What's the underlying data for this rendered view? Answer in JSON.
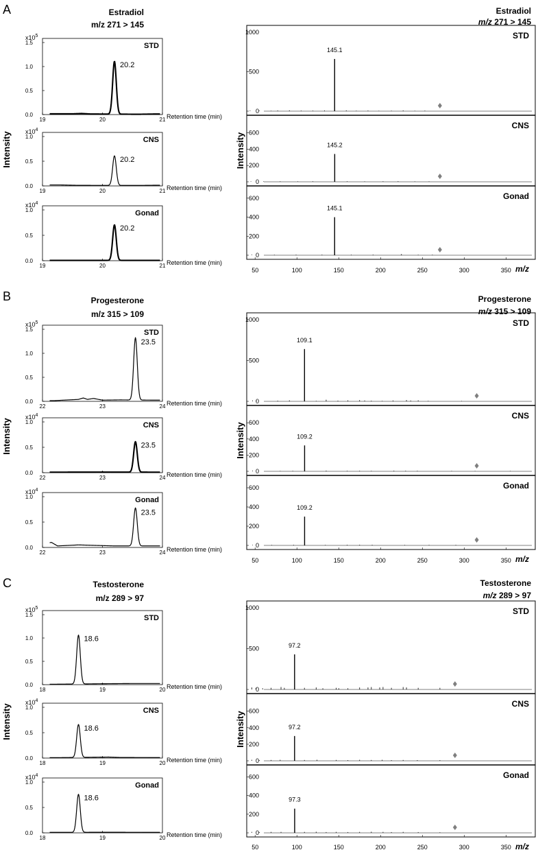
{
  "chart_data": [
    {
      "type": "chromatogram-panel",
      "panel_label": "A",
      "compound": "Estradiol",
      "transition": "m/z 271 > 145",
      "ylabel": "Intensity",
      "xlabel": "Retention time (min)",
      "xticks": [
        "19",
        "20",
        "21"
      ],
      "xrange": [
        19,
        21
      ],
      "peak_rt": 20.2,
      "peak_width": 0.03,
      "traces": [
        {
          "name": "STD",
          "exponent": "x10",
          "exp_sup": "5",
          "yticks": [
            "1.5",
            "1.0",
            "0.5",
            "0.0"
          ],
          "ymax": 1.5,
          "peak_height": 1.1,
          "peak_label": "20.2",
          "thick": true,
          "baseline": [
            [
              19.5,
              0.015
            ],
            [
              19.65,
              0.022
            ],
            [
              19.8,
              0.012
            ],
            [
              20.6,
              0.006
            ],
            [
              20.9,
              0.012
            ]
          ]
        },
        {
          "name": "CNS",
          "exponent": "x10",
          "exp_sup": "4",
          "yticks": [
            "1.0",
            "0.5",
            "0.0"
          ],
          "ymax": 1.0,
          "peak_height": 0.6,
          "peak_label": "20.2",
          "thick": false,
          "baseline": [
            [
              19.3,
              0.02
            ],
            [
              19.6,
              0.012
            ],
            [
              20.6,
              0.01
            ],
            [
              20.95,
              0.015
            ]
          ]
        },
        {
          "name": "Gonad",
          "exponent": "x10",
          "exp_sup": "4",
          "yticks": [
            "1.0",
            "0.5",
            "0.0"
          ],
          "ymax": 1.0,
          "peak_height": 0.7,
          "peak_label": "20.2",
          "thick": true,
          "baseline": [
            [
              19.4,
              0.006
            ],
            [
              20.7,
              0.006
            ]
          ]
        }
      ]
    },
    {
      "type": "spectrum-panel",
      "panel_label": "A",
      "compound": "Estradiol",
      "transition": "m/z 271 > 145",
      "ylabel": "Intensity",
      "xlabel": "m/z",
      "xticks": [
        50,
        100,
        150,
        200,
        250,
        300,
        350
      ],
      "xrange": [
        40,
        385
      ],
      "precursor_mz": 271,
      "spectra": [
        {
          "name": "STD",
          "yticks": [
            1000,
            500,
            0
          ],
          "ymax": 1050,
          "base_mz": 145.1,
          "base_intensity": 660,
          "base_label": "145.1",
          "minor_peaks": [
            [
              44,
              8
            ],
            [
              55,
              6
            ],
            [
              69,
              5
            ],
            [
              77,
              8
            ],
            [
              91,
              10
            ],
            [
              105,
              7
            ],
            [
              119,
              6
            ],
            [
              133,
              9
            ],
            [
              159,
              10
            ],
            [
              171,
              6
            ],
            [
              185,
              8
            ],
            [
              198,
              5
            ],
            [
              213,
              6
            ],
            [
              227,
              9
            ],
            [
              241,
              5
            ],
            [
              253,
              7
            ]
          ]
        },
        {
          "name": "CNS",
          "yticks": [
            600,
            400,
            200,
            0
          ],
          "ymax": 780,
          "base_mz": 145.2,
          "base_intensity": 340,
          "base_label": "145.2",
          "minor_peaks": [
            [
              45,
              6
            ],
            [
              60,
              5
            ],
            [
              80,
              6
            ],
            [
              101,
              5
            ],
            [
              119,
              6
            ],
            [
              160,
              6
            ],
            [
              181,
              5
            ],
            [
              203,
              6
            ],
            [
              221,
              7
            ],
            [
              241,
              5
            ],
            [
              258,
              5
            ]
          ]
        },
        {
          "name": "Gonad",
          "yticks": [
            600,
            400,
            200,
            0
          ],
          "ymax": 700,
          "base_mz": 145.1,
          "base_intensity": 400,
          "base_label": "145.1",
          "minor_peaks": [
            [
              46,
              6
            ],
            [
              73,
              5
            ],
            [
              99,
              5
            ],
            [
              130,
              6
            ],
            [
              165,
              5
            ],
            [
              191,
              6
            ],
            [
              225,
              12
            ],
            [
              245,
              5
            ],
            [
              262,
              5
            ]
          ]
        }
      ]
    },
    {
      "type": "chromatogram-panel",
      "panel_label": "B",
      "compound": "Progesterone",
      "transition": "m/z 315 > 109",
      "ylabel": "Intensity",
      "xlabel": "Retention time (min)",
      "xticks": [
        "22",
        "23",
        "24"
      ],
      "xrange": [
        22,
        24
      ],
      "peak_rt": 23.55,
      "peak_width": 0.03,
      "traces": [
        {
          "name": "STD",
          "exponent": "x10",
          "exp_sup": "5",
          "yticks": [
            "1.5",
            "1.0",
            "0.5",
            "0.0"
          ],
          "ymax": 1.5,
          "peak_height": 1.3,
          "peak_label": "23.5",
          "thick": false,
          "baseline": [
            [
              22.2,
              0.015
            ],
            [
              22.6,
              0.04
            ],
            [
              22.68,
              0.07
            ],
            [
              22.75,
              0.04
            ],
            [
              22.85,
              0.06
            ],
            [
              23.0,
              0.025
            ],
            [
              23.3,
              0.03
            ],
            [
              23.85,
              0.025
            ]
          ]
        },
        {
          "name": "CNS",
          "exponent": "x10",
          "exp_sup": "4",
          "yticks": [
            "1.0",
            "0.5",
            "0.0"
          ],
          "ymax": 1.0,
          "peak_height": 0.6,
          "peak_label": "23.5",
          "thick": true,
          "baseline": [
            [
              22.3,
              0.01
            ],
            [
              23.0,
              0.012
            ],
            [
              23.9,
              0.01
            ]
          ]
        },
        {
          "name": "Gonad",
          "exponent": "x10",
          "exp_sup": "4",
          "yticks": [
            "1.0",
            "0.5",
            "0.0"
          ],
          "ymax": 1.0,
          "peak_height": 0.75,
          "peak_label": "23.5",
          "thick": false,
          "baseline": [
            [
              22.05,
              0.08
            ],
            [
              22.15,
              0.1
            ],
            [
              22.25,
              0.03
            ],
            [
              22.6,
              0.05
            ],
            [
              22.9,
              0.04
            ],
            [
              23.2,
              0.03
            ],
            [
              23.85,
              0.03
            ]
          ]
        }
      ]
    },
    {
      "type": "spectrum-panel",
      "panel_label": "B",
      "compound": "Progesterone",
      "transition": "m/z 315 > 109",
      "ylabel": "Intensity",
      "xlabel": "m/z",
      "xticks": [
        50,
        100,
        150,
        200,
        250,
        300,
        350
      ],
      "xrange": [
        40,
        385
      ],
      "precursor_mz": 315,
      "spectra": [
        {
          "name": "STD",
          "yticks": [
            1000,
            500,
            0
          ],
          "ymax": 1050,
          "base_mz": 109.1,
          "base_intensity": 640,
          "base_label": "109.1",
          "minor_peaks": [
            [
              47,
              10
            ],
            [
              52,
              6
            ],
            [
              77,
              8
            ],
            [
              91,
              12
            ],
            [
              123,
              6
            ],
            [
              135,
              20
            ],
            [
              149,
              8
            ],
            [
              161,
              12
            ],
            [
              175,
              15
            ],
            [
              181,
              10
            ],
            [
              189,
              8
            ],
            [
              202,
              6
            ],
            [
              215,
              10
            ],
            [
              231,
              16
            ],
            [
              236,
              10
            ],
            [
              245,
              12
            ],
            [
              257,
              6
            ],
            [
              297,
              5
            ]
          ]
        },
        {
          "name": "CNS",
          "yticks": [
            600,
            400,
            200,
            0
          ],
          "ymax": 780,
          "base_mz": 109.2,
          "base_intensity": 320,
          "base_label": "109.2",
          "minor_peaks": [
            [
              47,
              8
            ],
            [
              80,
              5
            ],
            [
              95,
              6
            ],
            [
              135,
              8
            ],
            [
              160,
              6
            ],
            [
              175,
              7
            ],
            [
              189,
              6
            ],
            [
              216,
              8
            ],
            [
              230,
              7
            ],
            [
              244,
              6
            ],
            [
              285,
              5
            ],
            [
              313,
              5
            ],
            [
              355,
              5
            ]
          ]
        },
        {
          "name": "Gonad",
          "yticks": [
            600,
            400,
            200,
            0
          ],
          "ymax": 700,
          "base_mz": 109.2,
          "base_intensity": 300,
          "base_label": "109.2",
          "minor_peaks": [
            [
              47,
              5
            ],
            [
              70,
              5
            ],
            [
              96,
              6
            ],
            [
              134,
              5
            ],
            [
              160,
              6
            ],
            [
              175,
              7
            ],
            [
              190,
              6
            ],
            [
              229,
              5
            ],
            [
              258,
              5
            ],
            [
              290,
              5
            ]
          ]
        }
      ]
    },
    {
      "type": "chromatogram-panel",
      "panel_label": "C",
      "compound": "Testosterone",
      "transition": "m/z 289 > 97",
      "ylabel": "Intensity",
      "xlabel": "Retention time (min)",
      "xticks": [
        "18",
        "19",
        "20"
      ],
      "xrange": [
        18,
        20
      ],
      "peak_rt": 18.6,
      "peak_width": 0.03,
      "traces": [
        {
          "name": "STD",
          "exponent": "x10",
          "exp_sup": "5",
          "yticks": [
            "1.5",
            "1.0",
            "0.5",
            "0.0"
          ],
          "ymax": 1.5,
          "peak_height": 1.05,
          "peak_label": "18.6",
          "thick": false,
          "baseline": [
            [
              18.2,
              0.01
            ],
            [
              19.0,
              0.02
            ],
            [
              19.5,
              0.025
            ],
            [
              19.95,
              0.025
            ]
          ]
        },
        {
          "name": "CNS",
          "exponent": "x10",
          "exp_sup": "4",
          "yticks": [
            "1.0",
            "0.5",
            "0.0"
          ],
          "ymax": 1.0,
          "peak_height": 0.65,
          "peak_label": "18.6",
          "thick": false,
          "baseline": [
            [
              18.2,
              0.008
            ],
            [
              19.1,
              0.02
            ],
            [
              19.3,
              0.012
            ],
            [
              19.95,
              0.01
            ]
          ]
        },
        {
          "name": "Gonad",
          "exponent": "x10",
          "exp_sup": "4",
          "yticks": [
            "1.0",
            "0.5",
            "0.0"
          ],
          "ymax": 1.0,
          "peak_height": 0.75,
          "peak_label": "18.6",
          "thick": false,
          "baseline": [
            [
              18.2,
              0.01
            ],
            [
              19.1,
              0.012
            ],
            [
              19.9,
              0.01
            ]
          ]
        }
      ]
    },
    {
      "type": "spectrum-panel",
      "panel_label": "C",
      "compound": "Testosterone",
      "transition": "m/z 289 > 97",
      "ylabel": "Intensity",
      "xlabel": "m/z",
      "xticks": [
        50,
        100,
        150,
        200,
        250,
        300,
        350
      ],
      "xrange": [
        40,
        385
      ],
      "precursor_mz": 289,
      "spectra": [
        {
          "name": "STD",
          "yticks": [
            1000,
            500,
            0
          ],
          "ymax": 1050,
          "base_mz": 97.2,
          "base_intensity": 430,
          "base_label": "97.2",
          "minor_peaks": [
            [
              46,
              25
            ],
            [
              51,
              20
            ],
            [
              59,
              15
            ],
            [
              69,
              20
            ],
            [
              81,
              30
            ],
            [
              85,
              20
            ],
            [
              109,
              20
            ],
            [
              123,
              25
            ],
            [
              131,
              15
            ],
            [
              147,
              20
            ],
            [
              150,
              15
            ],
            [
              161,
              15
            ],
            [
              175,
              25
            ],
            [
              185,
              25
            ],
            [
              189,
              30
            ],
            [
              199,
              25
            ],
            [
              203,
              30
            ],
            [
              213,
              20
            ],
            [
              227,
              30
            ],
            [
              231,
              25
            ],
            [
              245,
              20
            ],
            [
              271,
              20
            ]
          ]
        },
        {
          "name": "CNS",
          "yticks": [
            600,
            400,
            200,
            0
          ],
          "ymax": 780,
          "base_mz": 97.2,
          "base_intensity": 300,
          "base_label": "97.2",
          "minor_peaks": [
            [
              46,
              12
            ],
            [
              55,
              8
            ],
            [
              69,
              10
            ],
            [
              80,
              12
            ],
            [
              109,
              10
            ],
            [
              124,
              12
            ],
            [
              147,
              10
            ],
            [
              161,
              8
            ],
            [
              175,
              12
            ],
            [
              189,
              10
            ],
            [
              202,
              12
            ],
            [
              213,
              8
            ],
            [
              227,
              10
            ],
            [
              244,
              8
            ],
            [
              271,
              8
            ]
          ]
        },
        {
          "name": "Gonad",
          "yticks": [
            600,
            400,
            200,
            0
          ],
          "ymax": 700,
          "base_mz": 97.3,
          "base_intensity": 260,
          "base_label": "97.3",
          "minor_peaks": [
            [
              46,
              10
            ],
            [
              55,
              8
            ],
            [
              69,
              10
            ],
            [
              81,
              10
            ],
            [
              109,
              10
            ],
            [
              123,
              12
            ],
            [
              135,
              8
            ],
            [
              147,
              10
            ],
            [
              161,
              8
            ],
            [
              175,
              10
            ],
            [
              189,
              12
            ],
            [
              203,
              10
            ],
            [
              213,
              8
            ],
            [
              227,
              10
            ],
            [
              245,
              8
            ],
            [
              271,
              6
            ]
          ]
        }
      ]
    }
  ],
  "colors": {
    "trace": "#000000",
    "precursor_marker": "#7f7f7f",
    "frame": "#000000"
  }
}
